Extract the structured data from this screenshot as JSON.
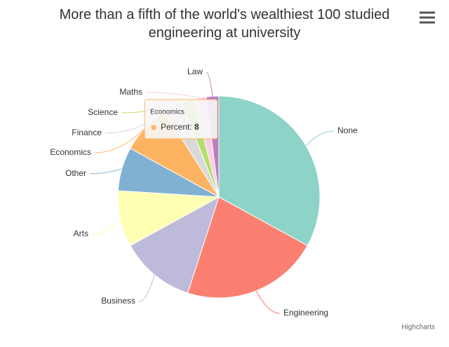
{
  "chart_data": {
    "type": "pie",
    "title": "More than a fifth of the world's wealthiest 100 studied engineering at university",
    "series_name": "Percent",
    "categories": [
      "None",
      "Engineering",
      "Business",
      "Arts",
      "Other",
      "Economics",
      "Finance",
      "Science",
      "Maths",
      "Law"
    ],
    "values": [
      33,
      22,
      12,
      9,
      7,
      8,
      3,
      2,
      2,
      2
    ],
    "colors": [
      "#8dd3c7",
      "#fb8072",
      "#bebada",
      "#ffffb3",
      "#80b1d3",
      "#fdb462",
      "#d9d9d9",
      "#b3de69",
      "#fccde5",
      "#bc80bd"
    ],
    "tooltip": {
      "category_index": 5
    },
    "credits": "Highcharts"
  }
}
